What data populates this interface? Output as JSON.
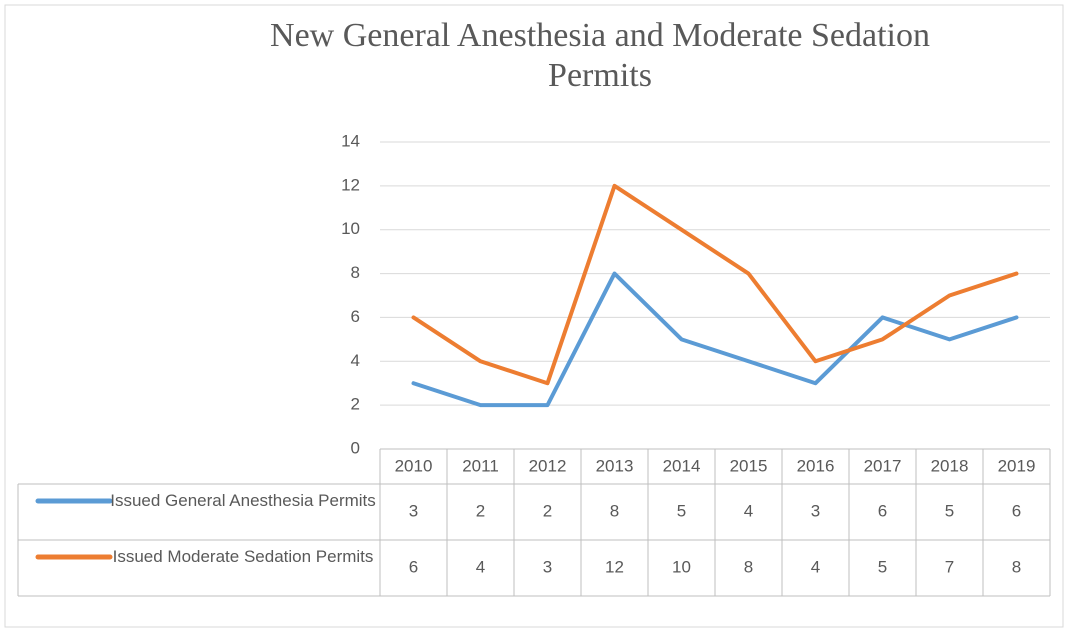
{
  "chart_data": {
    "type": "line",
    "title": "New General Anesthesia and Moderate Sedation Permits",
    "categories": [
      "2010",
      "2011",
      "2012",
      "2013",
      "2014",
      "2015",
      "2016",
      "2017",
      "2018",
      "2019"
    ],
    "series": [
      {
        "name": "Issued General Anesthesia Permits",
        "color": "#5b9bd5",
        "values": [
          3,
          2,
          2,
          8,
          5,
          4,
          3,
          6,
          5,
          6
        ]
      },
      {
        "name": "Issued Moderate Sedation Permits",
        "color": "#ed7d31",
        "values": [
          6,
          4,
          3,
          12,
          10,
          8,
          4,
          5,
          7,
          8
        ]
      }
    ],
    "ylim": [
      0,
      14
    ],
    "yticks": [
      0,
      2,
      4,
      6,
      8,
      10,
      12,
      14
    ],
    "grid": true
  }
}
